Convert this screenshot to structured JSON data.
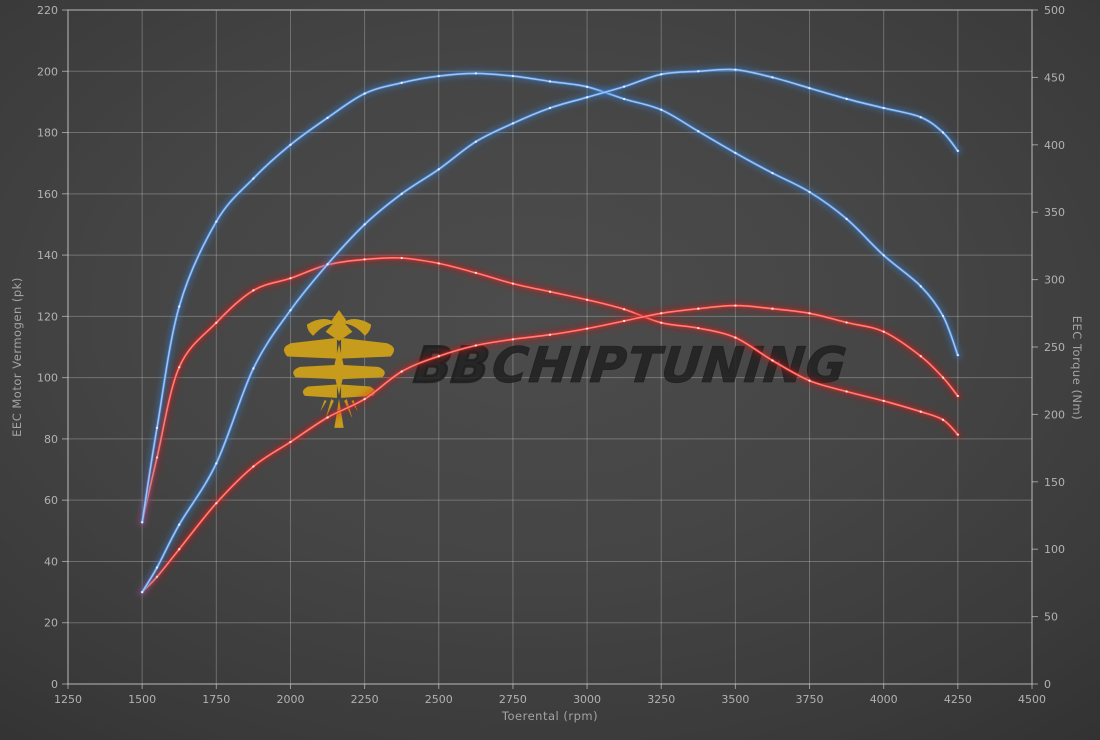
{
  "watermark": {
    "brand_bold": "BB",
    "brand_rest": "CHIPTUNING",
    "logo_color": "#c79b1b",
    "text_color": "rgba(30,30,30,0.82)"
  },
  "colors": {
    "background": "#424242",
    "grid": "#cdcdcd",
    "tick_text": "#b2b2b2",
    "axis_title_text": "#a3a3a3",
    "tuned_line": "#3d80d8",
    "tuned_core": "#9cc3f2",
    "stock_line": "#dd2020",
    "stock_core": "#ff8076",
    "marker_dot": "#ffffff"
  },
  "chart_data": {
    "type": "line",
    "title": "",
    "xlabel": "Toerental (rpm)",
    "ylabel_left": "EEC Motor Vermogen (pk)",
    "ylabel_right": "EEC Torque (Nm)",
    "grid": true,
    "legend": "none",
    "x_range": [
      1250,
      4500
    ],
    "y_left_range": [
      0,
      220
    ],
    "y_right_range": [
      0,
      500
    ],
    "x_ticks": [
      1250,
      1500,
      1750,
      2000,
      2250,
      2500,
      2750,
      3000,
      3250,
      3500,
      3750,
      4000,
      4250,
      4500
    ],
    "y_left_ticks": [
      0,
      20,
      40,
      60,
      80,
      100,
      120,
      140,
      160,
      180,
      200,
      220
    ],
    "y_right_ticks": [
      0,
      50,
      100,
      150,
      200,
      250,
      300,
      350,
      400,
      450,
      500
    ],
    "rpm": [
      1500,
      1550,
      1625,
      1750,
      1875,
      2000,
      2125,
      2250,
      2375,
      2500,
      2625,
      2750,
      2875,
      3000,
      3125,
      3250,
      3375,
      3500,
      3625,
      3750,
      3875,
      4000,
      4125,
      4200,
      4250
    ],
    "series": [
      {
        "name": "stock-torque",
        "axis": "right",
        "unit": "Nm",
        "color": "#dd2020",
        "core": "#ff8076",
        "values": [
          120,
          168,
          235,
          268,
          292,
          301,
          311,
          315,
          316,
          312,
          305,
          297,
          291,
          285,
          278,
          268,
          264,
          257,
          240,
          225,
          217,
          210,
          202,
          196,
          185
        ]
      },
      {
        "name": "stock-power",
        "axis": "left",
        "unit": "pk",
        "color": "#dd2020",
        "core": "#ff8076",
        "values": [
          30,
          35,
          44,
          59,
          71,
          79,
          87,
          93,
          102,
          107,
          110.5,
          112.5,
          114,
          116,
          118.5,
          121,
          122.5,
          123.5,
          122.5,
          121,
          118,
          115,
          107,
          100,
          94
        ]
      },
      {
        "name": "tuned-torque",
        "axis": "right",
        "unit": "Nm",
        "color": "#3d80d8",
        "core": "#9cc3f2",
        "values": [
          120,
          190,
          280,
          343,
          375,
          400,
          420,
          438,
          446,
          451,
          453,
          451,
          447,
          443,
          434,
          426,
          410,
          394,
          379,
          365,
          345,
          318,
          295,
          273,
          244
        ]
      },
      {
        "name": "tuned-power",
        "axis": "left",
        "unit": "pk",
        "color": "#3d80d8",
        "core": "#9cc3f2",
        "values": [
          30,
          38,
          52,
          72,
          103,
          122,
          137,
          150,
          160,
          168,
          177,
          183,
          188,
          191.5,
          195,
          199,
          200,
          200.5,
          198,
          194.5,
          191,
          188,
          185,
          180,
          174
        ]
      }
    ]
  }
}
